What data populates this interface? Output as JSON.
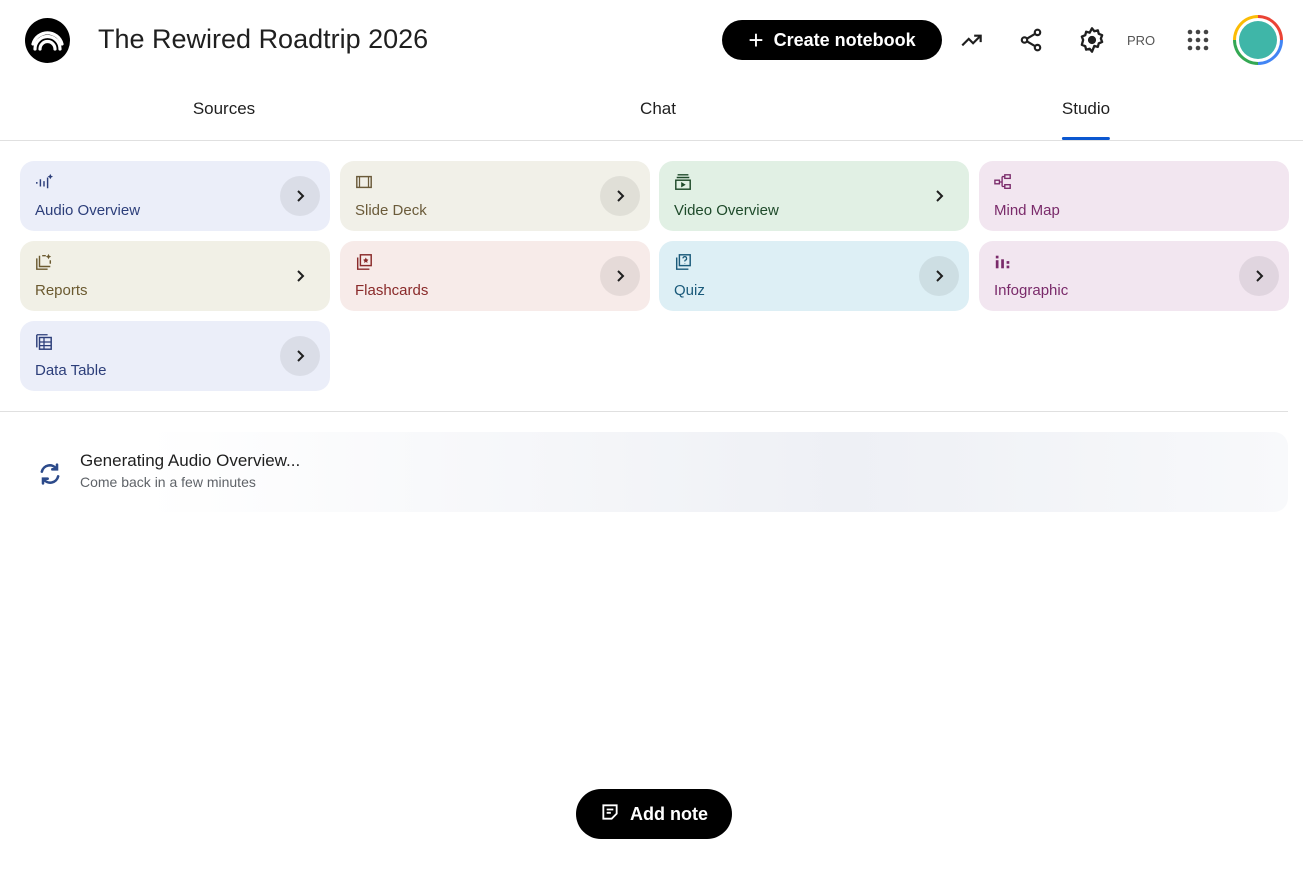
{
  "header": {
    "title": "The Rewired Roadtrip 2026",
    "create_label": "Create notebook",
    "pro_label": "PRO",
    "icons": [
      "notebooklm-logo-icon",
      "analytics-icon",
      "share-icon",
      "settings-icon",
      "apps-grid-icon",
      "avatar"
    ]
  },
  "tabs": [
    {
      "label": "Sources"
    },
    {
      "label": "Chat"
    },
    {
      "label": "Studio",
      "active": true
    }
  ],
  "studio": {
    "cards": [
      {
        "label": "Audio Overview",
        "icon": "audio-waveform-icon",
        "bg": "#ebeef9",
        "fg": "#2c3e7a",
        "chevron": "circle"
      },
      {
        "label": "Slide Deck",
        "icon": "slides-icon",
        "bg": "#f1f0e8",
        "fg": "#6b5b3a",
        "chevron": "circle"
      },
      {
        "label": "Video Overview",
        "icon": "video-icon",
        "bg": "#e1f0e4",
        "fg": "#1e4a2a",
        "chevron": "plain"
      },
      {
        "label": "Mind Map",
        "icon": "mind-map-icon",
        "bg": "#f2e6f0",
        "fg": "#7a2a6a",
        "chevron": "none"
      },
      {
        "label": "Reports",
        "icon": "reports-icon",
        "bg": "#f1f0e6",
        "fg": "#6b5a30",
        "chevron": "plain"
      },
      {
        "label": "Flashcards",
        "icon": "flashcards-icon",
        "bg": "#f7ebe9",
        "fg": "#8a2a2a",
        "chevron": "circle"
      },
      {
        "label": "Quiz",
        "icon": "quiz-icon",
        "bg": "#ddeff5",
        "fg": "#1a5a7a",
        "chevron": "circle"
      },
      {
        "label": "Infographic",
        "icon": "infographic-icon",
        "bg": "#f2e6f0",
        "fg": "#7a2a6a",
        "chevron": "circle"
      },
      {
        "label": "Data Table",
        "icon": "data-table-icon",
        "bg": "#ebeef9",
        "fg": "#2c3e7a",
        "chevron": "circle"
      }
    ]
  },
  "generating": {
    "title": "Generating Audio Overview...",
    "subtitle": "Come back in a few minutes"
  },
  "add_note_label": "Add note"
}
